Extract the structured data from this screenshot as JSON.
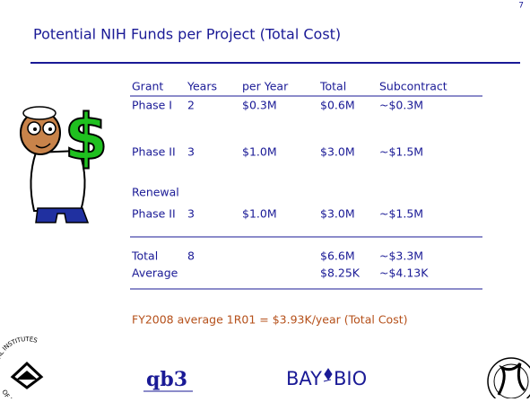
{
  "slide_number": "7",
  "header": {
    "title": "Potential NIH Funds per Project (Total Cost)"
  },
  "table": {
    "columns": {
      "grant": "Grant",
      "years": "Years",
      "per_year": "per Year",
      "total": "Total",
      "subcontract": "Subcontract"
    },
    "rows": [
      {
        "grant": "Phase I",
        "years": "2",
        "per_year": "$0.3M",
        "total": "$0.6M",
        "subcontract": "~$0.3M"
      },
      {
        "grant": "Phase II",
        "years": "3",
        "per_year": "$1.0M",
        "total": "$3.0M",
        "subcontract": "~$1.5M"
      },
      {
        "grant": "Renewal"
      },
      {
        "grant": "Phase II",
        "years": "3",
        "per_year": "$1.0M",
        "total": "$3.0M",
        "subcontract": "~$1.5M"
      },
      {
        "grant": "Total",
        "years": "8",
        "total": "$6.6M",
        "subcontract": "~$3.3M"
      },
      {
        "grant": "Average",
        "total": "$8.25K",
        "subcontract": "~$4.13K"
      }
    ]
  },
  "note": "FY2008 average 1R01 = $3.93K/year (Total Cost)",
  "logos": {
    "nih_top": "NATIONAL INSTITUTES",
    "nih_bottom": "OF HEALTH",
    "qb3": "qb3",
    "baybio_left": "BAY",
    "baybio_right": "BIO"
  }
}
